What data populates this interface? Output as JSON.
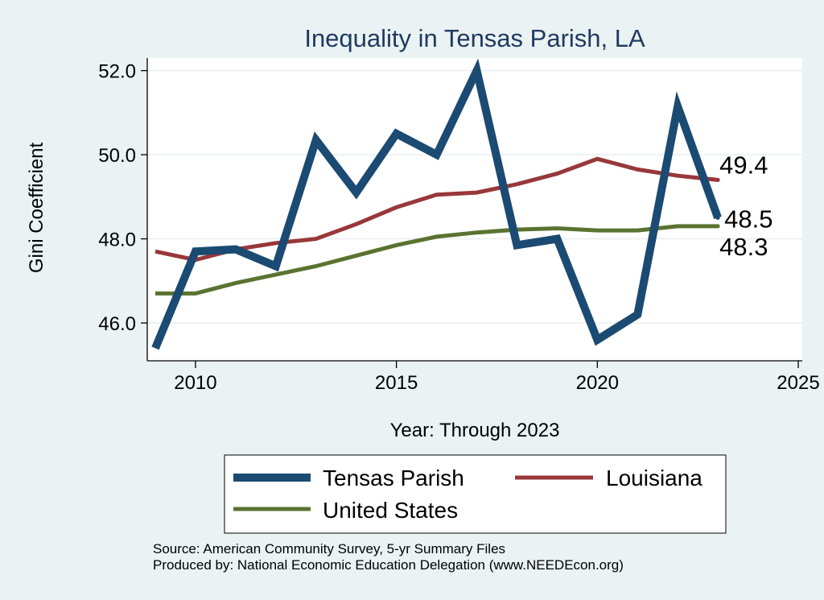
{
  "chart_data": {
    "type": "line",
    "title": "Inequality in Tensas Parish, LA",
    "xlabel": "Year: Through 2023",
    "ylabel": "Gini Coefficient",
    "xlim": [
      2008.8,
      2025.1
    ],
    "ylim": [
      45.1,
      52.3
    ],
    "x_ticks": [
      2010,
      2015,
      2020,
      2025
    ],
    "y_ticks": [
      46.0,
      48.0,
      50.0,
      52.0
    ],
    "y_tick_labels": [
      "46.0",
      "48.0",
      "50.0",
      "52.0"
    ],
    "grid": true,
    "x": [
      2009,
      2010,
      2011,
      2012,
      2013,
      2014,
      2015,
      2016,
      2017,
      2018,
      2019,
      2020,
      2021,
      2022,
      2023
    ],
    "series": [
      {
        "name": "Tensas Parish",
        "color": "#1b4a72",
        "values": [
          45.4,
          47.7,
          47.75,
          47.35,
          50.35,
          49.1,
          50.5,
          50.0,
          52.0,
          47.85,
          48.0,
          45.6,
          46.2,
          51.15,
          48.5
        ],
        "end_label": "48.5"
      },
      {
        "name": "Louisiana",
        "color": "#98373a",
        "values": [
          47.7,
          47.5,
          47.75,
          47.9,
          48.0,
          48.35,
          48.75,
          49.05,
          49.1,
          49.3,
          49.55,
          49.9,
          49.65,
          49.5,
          49.4
        ],
        "end_label": "49.4"
      },
      {
        "name": "United States",
        "color": "#5a7330",
        "values": [
          46.7,
          46.7,
          46.95,
          47.15,
          47.35,
          47.6,
          47.85,
          48.05,
          48.15,
          48.22,
          48.25,
          48.2,
          48.2,
          48.3,
          48.3
        ],
        "end_label": "48.3"
      }
    ],
    "legend": {
      "placement": "bottom",
      "entries": [
        "Tensas Parish",
        "Louisiana",
        "United States"
      ]
    }
  },
  "source": {
    "line1": "Source: American Community Survey, 5-yr Summary Files",
    "line2": "Produced by: National Economic Education Delegation (www.NEEDEcon.org)"
  }
}
